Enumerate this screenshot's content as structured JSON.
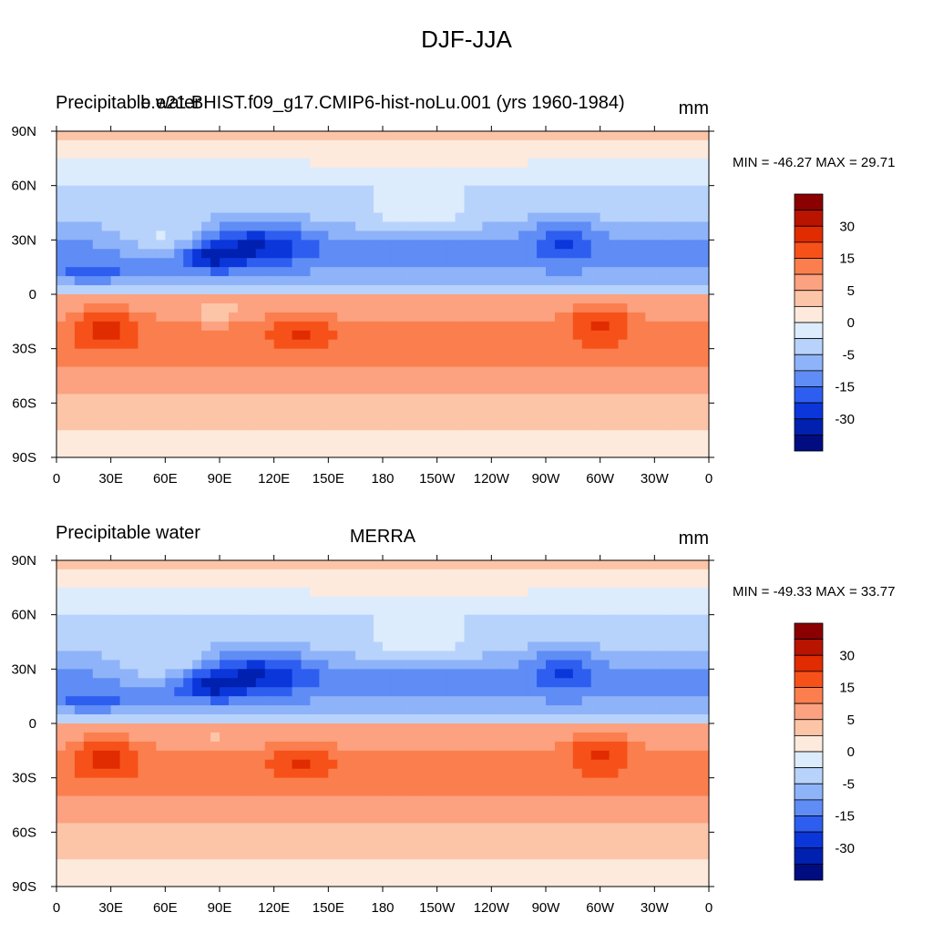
{
  "figure": {
    "title": "DJF-JJA"
  },
  "panels": [
    {
      "left_title": "Precipitable water",
      "center_title": "b.e21.BHIST.f09_g17.CMIP6-hist-noLu.001 (yrs 1960-1984)",
      "units": "mm",
      "min_max": "MIN = -46.27 MAX =  29.71"
    },
    {
      "left_title": "Precipitable water",
      "center_title": "MERRA",
      "units": "mm",
      "min_max": "MIN = -49.33 MAX =  33.77"
    }
  ],
  "map": {
    "lon_ticks": [
      "0",
      "30E",
      "60E",
      "90E",
      "120E",
      "150E",
      "180",
      "150W",
      "120W",
      "90W",
      "60W",
      "30W",
      "0"
    ],
    "lat_ticks": [
      "90N",
      "60N",
      "30N",
      "0",
      "30S",
      "60S",
      "90S"
    ]
  },
  "colorbar": {
    "labels": [
      "30",
      "15",
      "5",
      "0",
      "-5",
      "-15",
      "-30"
    ],
    "colors": [
      "#8b0000",
      "#b81400",
      "#e02c00",
      "#f7511a",
      "#fb7f4e",
      "#fca280",
      "#fdc5a8",
      "#feeadc",
      "#dcecfc",
      "#b8d3fb",
      "#8eb3f9",
      "#5f8df5",
      "#2e5ef0",
      "#0b36da",
      "#0020b0",
      "#000c80"
    ]
  },
  "chart_data": [
    {
      "type": "heatmap",
      "title": "DJF-JJA",
      "left_label": "Precipitable water",
      "subtitle": "b.e21.BHIST.f09_g17.CMIP6-hist-noLu.001 (yrs 1960-1984)",
      "units": "mm",
      "min": -46.27,
      "max": 29.71,
      "xlim": [
        0,
        360
      ],
      "ylim": [
        -90,
        90
      ],
      "levels": [
        -40,
        -35,
        -30,
        -25,
        -20,
        -15,
        -10,
        -5,
        0,
        5,
        10,
        15,
        20,
        25,
        30
      ]
    },
    {
      "type": "heatmap",
      "title": "DJF-JJA",
      "left_label": "Precipitable water",
      "subtitle": "MERRA",
      "units": "mm",
      "min": -49.33,
      "max": 33.77,
      "xlim": [
        0,
        360
      ],
      "ylim": [
        -90,
        90
      ],
      "levels": [
        -40,
        -35,
        -30,
        -25,
        -20,
        -15,
        -10,
        -5,
        0,
        5,
        10,
        15,
        20,
        25,
        30
      ]
    }
  ]
}
